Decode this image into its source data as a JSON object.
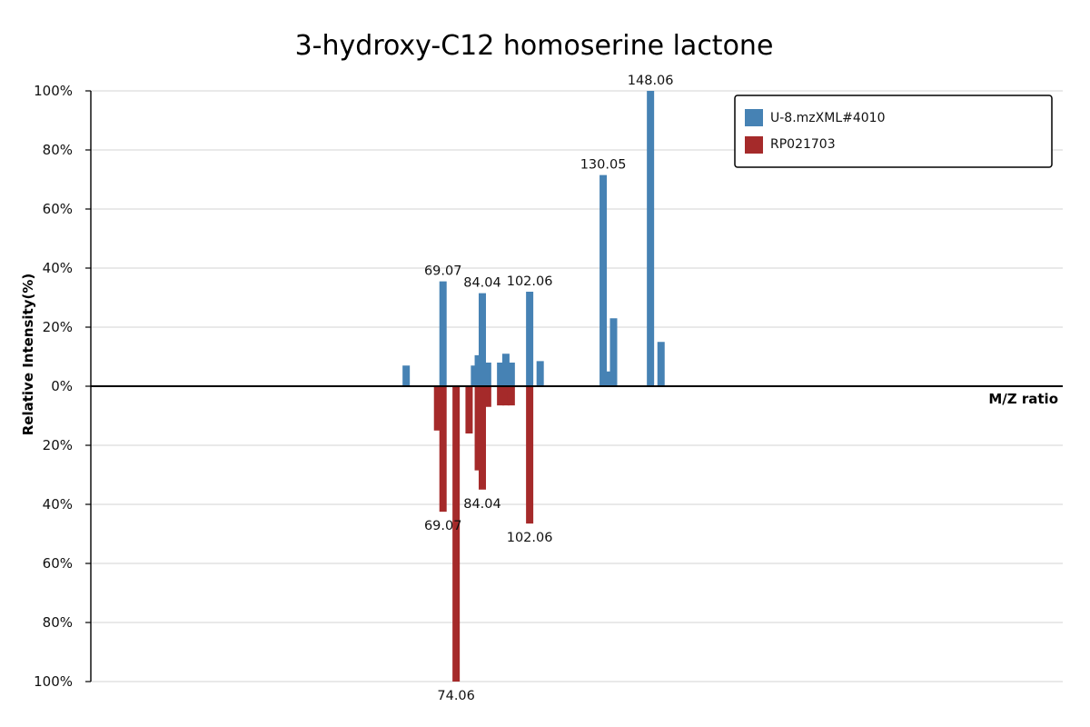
{
  "chart_data": {
    "type": "bar",
    "title": "3-hydroxy-C12 homoserine lactone",
    "xlabel": "M/Z ratio",
    "ylabel": "Relative Intensity(%)",
    "xlim": [
      -65,
      305
    ],
    "ylim_top": [
      0,
      100
    ],
    "ylim_bottom": [
      0,
      100
    ],
    "y_tick_labels": [
      "100%",
      "80%",
      "60%",
      "40%",
      "20%",
      "0%",
      "20%",
      "40%",
      "60%",
      "80%",
      "100%"
    ],
    "grid": true,
    "legend_position": "top-right",
    "series": [
      {
        "name": "U-8.mzXML#4010",
        "color": "#4682b4",
        "direction": "up",
        "peaks": [
          {
            "mz": 55.05,
            "intensity": 7
          },
          {
            "mz": 69.07,
            "intensity": 35.5,
            "label": "69.07"
          },
          {
            "mz": 81.05,
            "intensity": 7
          },
          {
            "mz": 82.5,
            "intensity": 10.5
          },
          {
            "mz": 84.04,
            "intensity": 31.5,
            "label": "84.04"
          },
          {
            "mz": 86.06,
            "intensity": 8
          },
          {
            "mz": 91.0,
            "intensity": 8
          },
          {
            "mz": 93.0,
            "intensity": 11
          },
          {
            "mz": 95.05,
            "intensity": 8
          },
          {
            "mz": 102.06,
            "intensity": 32,
            "label": "102.06"
          },
          {
            "mz": 106.06,
            "intensity": 8.5
          },
          {
            "mz": 130.05,
            "intensity": 71.5,
            "label": "130.05"
          },
          {
            "mz": 132.0,
            "intensity": 5
          },
          {
            "mz": 134.0,
            "intensity": 23
          },
          {
            "mz": 148.06,
            "intensity": 100,
            "label": "148.06"
          },
          {
            "mz": 152.07,
            "intensity": 15
          }
        ]
      },
      {
        "name": "RP021703",
        "color": "#a52a2a",
        "direction": "down",
        "peaks": [
          {
            "mz": 67.0,
            "intensity": 15
          },
          {
            "mz": 69.07,
            "intensity": 42.5,
            "label": "69.07"
          },
          {
            "mz": 74.06,
            "intensity": 100,
            "label": "74.06"
          },
          {
            "mz": 79.0,
            "intensity": 16
          },
          {
            "mz": 82.5,
            "intensity": 28.5
          },
          {
            "mz": 84.04,
            "intensity": 35,
            "label": "84.04"
          },
          {
            "mz": 86.06,
            "intensity": 7
          },
          {
            "mz": 91.0,
            "intensity": 6.5
          },
          {
            "mz": 93.0,
            "intensity": 6.5
          },
          {
            "mz": 95.05,
            "intensity": 6.5
          },
          {
            "mz": 102.06,
            "intensity": 46.5,
            "label": "102.06"
          }
        ]
      }
    ]
  }
}
